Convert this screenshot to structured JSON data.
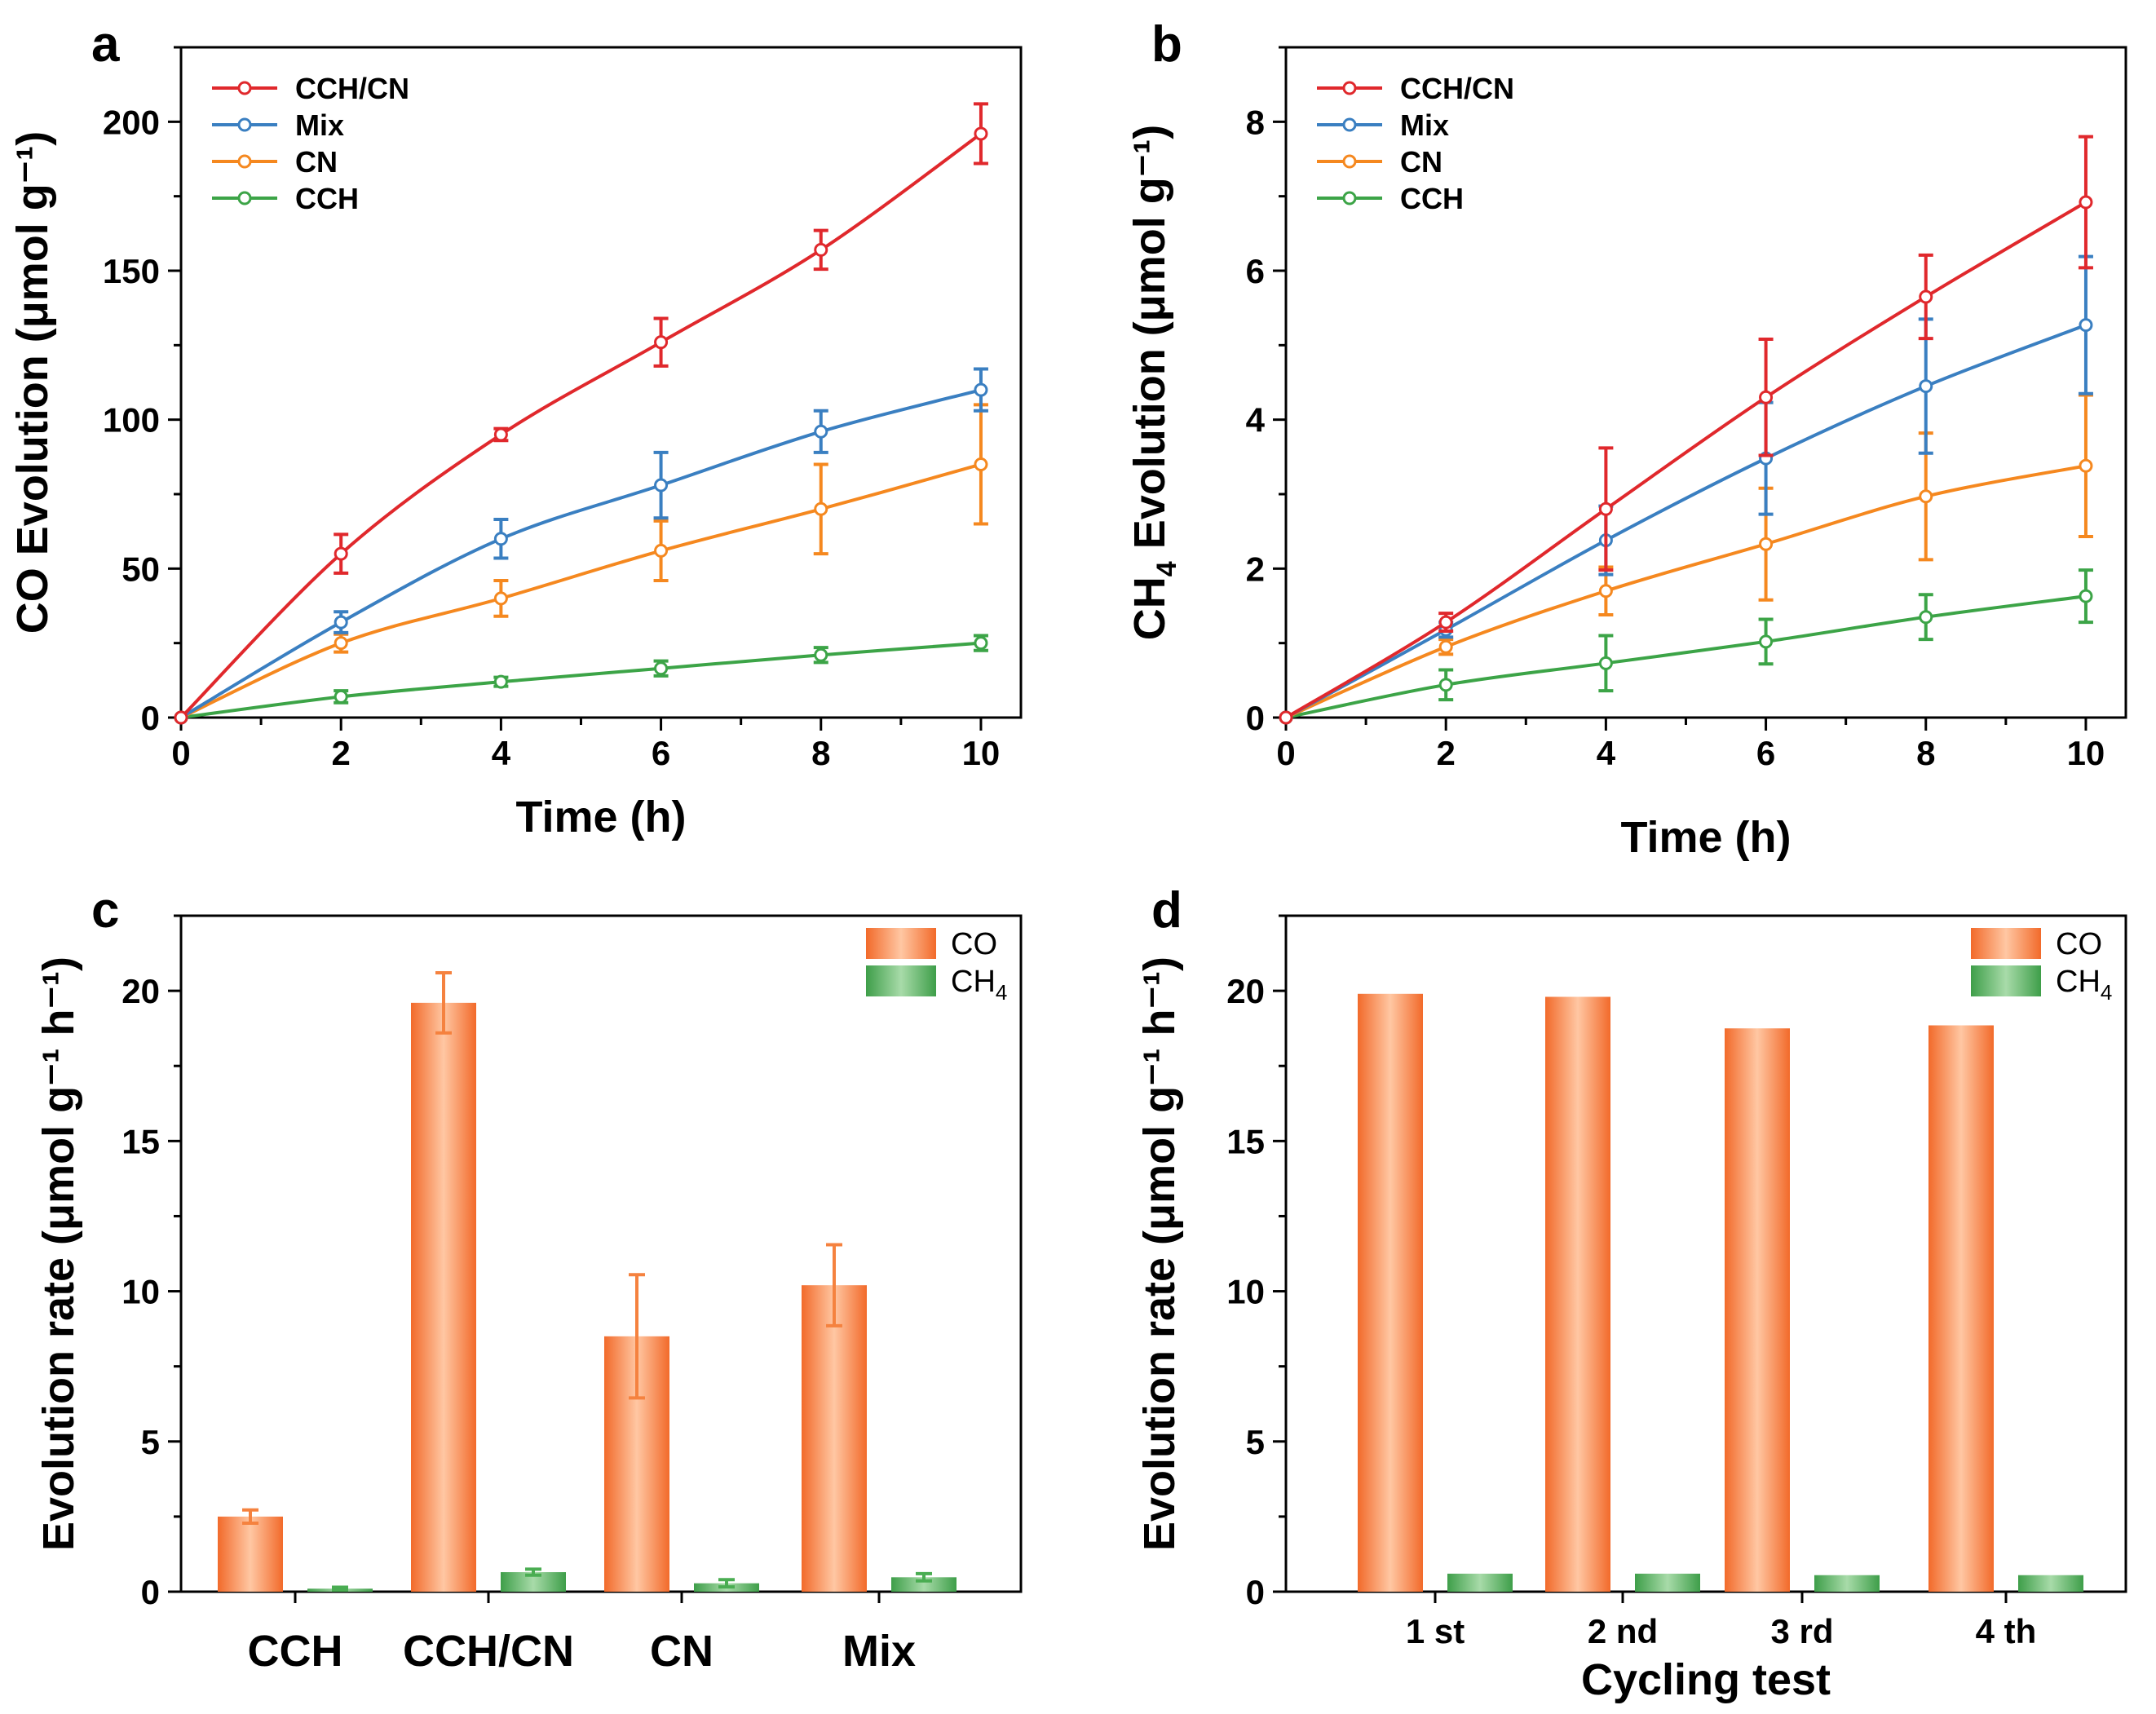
{
  "chart_data": [
    {
      "panel": "a",
      "type": "line",
      "xlabel": "Time (h)",
      "ylabel": "CO Evolution (μmol g⁻¹)",
      "xlim": [
        0,
        10.5
      ],
      "ylim": [
        0,
        225
      ],
      "xticks": [
        0,
        2,
        4,
        6,
        8,
        10
      ],
      "yticks": [
        0,
        50,
        100,
        150,
        200
      ],
      "x": [
        0,
        2,
        4,
        6,
        8,
        10
      ],
      "legend_position": "top-left",
      "series": [
        {
          "name": "CCH/CN",
          "color": "#e0282c",
          "values": [
            0,
            55,
            95,
            126,
            157,
            196
          ],
          "errors": [
            0,
            6.5,
            2,
            8,
            6.5,
            10
          ]
        },
        {
          "name": "Mix",
          "color": "#3a7fc1",
          "values": [
            0,
            32,
            60,
            78,
            96,
            110
          ],
          "errors": [
            0,
            3.5,
            6.5,
            11,
            7,
            7
          ]
        },
        {
          "name": "CN",
          "color": "#f5881f",
          "values": [
            0,
            25,
            40,
            56,
            70,
            85
          ],
          "errors": [
            0,
            3,
            6,
            10,
            15,
            20
          ]
        },
        {
          "name": "CCH",
          "color": "#3ca447",
          "values": [
            0,
            7,
            12,
            16.5,
            21,
            25
          ],
          "errors": [
            0,
            2,
            1.5,
            2.5,
            2.5,
            2.5
          ]
        }
      ]
    },
    {
      "panel": "b",
      "type": "line",
      "xlabel": "Time (h)",
      "ylabel_main": "CH",
      "ylabel_sub": "4",
      "ylabel_rest": " Evolution (μmol g⁻¹)",
      "xlim": [
        0,
        10.5
      ],
      "ylim": [
        0,
        9
      ],
      "xticks": [
        0,
        2,
        4,
        6,
        8,
        10
      ],
      "yticks": [
        0,
        2,
        4,
        6,
        8
      ],
      "x": [
        0,
        2,
        4,
        6,
        8,
        10
      ],
      "legend_position": "top-left",
      "series": [
        {
          "name": "CCH/CN",
          "color": "#e0282c",
          "values": [
            0,
            1.28,
            2.8,
            4.3,
            5.65,
            6.92
          ],
          "errors": [
            0,
            0.12,
            0.82,
            0.78,
            0.56,
            0.88
          ]
        },
        {
          "name": "Mix",
          "color": "#3a7fc1",
          "values": [
            0,
            1.18,
            2.38,
            3.48,
            4.45,
            5.27
          ],
          "errors": [
            0,
            0.1,
            0.46,
            0.75,
            0.9,
            0.92
          ]
        },
        {
          "name": "CN",
          "color": "#f5881f",
          "values": [
            0,
            0.95,
            1.7,
            2.33,
            2.97,
            3.38
          ],
          "errors": [
            0,
            0.1,
            0.32,
            0.75,
            0.85,
            0.95
          ]
        },
        {
          "name": "CCH",
          "color": "#3ca447",
          "values": [
            0,
            0.44,
            0.73,
            1.02,
            1.35,
            1.63
          ],
          "errors": [
            0,
            0.2,
            0.37,
            0.3,
            0.3,
            0.35
          ]
        }
      ]
    },
    {
      "panel": "c",
      "type": "bar",
      "xlabel": "",
      "ylabel": "Evolution rate (μmol g⁻¹ h⁻¹)",
      "ylim": [
        0,
        22.5
      ],
      "yticks": [
        0,
        5,
        10,
        15,
        20
      ],
      "categories": [
        "CCH",
        "CCH/CN",
        "CN",
        "Mix"
      ],
      "legend_position": "top-right",
      "series": [
        {
          "name": "CO",
          "color": "#f5823f",
          "values": [
            2.5,
            19.6,
            8.5,
            10.2
          ],
          "errors": [
            0.22,
            1.0,
            2.05,
            1.35
          ]
        },
        {
          "name_main": "CH",
          "name_sub": "4",
          "color": "#4aad52",
          "values": [
            0.1,
            0.65,
            0.28,
            0.48
          ],
          "errors": [
            0.05,
            0.1,
            0.12,
            0.12
          ]
        }
      ]
    },
    {
      "panel": "d",
      "type": "bar",
      "xlabel": "Cycling test",
      "ylabel": "Evolution rate (μmol g⁻¹ h⁻¹)",
      "ylim": [
        0,
        22.5
      ],
      "yticks": [
        0,
        5,
        10,
        15,
        20
      ],
      "categories": [
        "1 st",
        "2 nd",
        "3 rd",
        "4 th"
      ],
      "legend_position": "top-right",
      "series": [
        {
          "name": "CO",
          "color": "#f5823f",
          "values": [
            19.9,
            19.8,
            18.75,
            18.85
          ]
        },
        {
          "name_main": "CH",
          "name_sub": "4",
          "color": "#4aad52",
          "values": [
            0.6,
            0.6,
            0.55,
            0.55
          ]
        }
      ]
    }
  ]
}
